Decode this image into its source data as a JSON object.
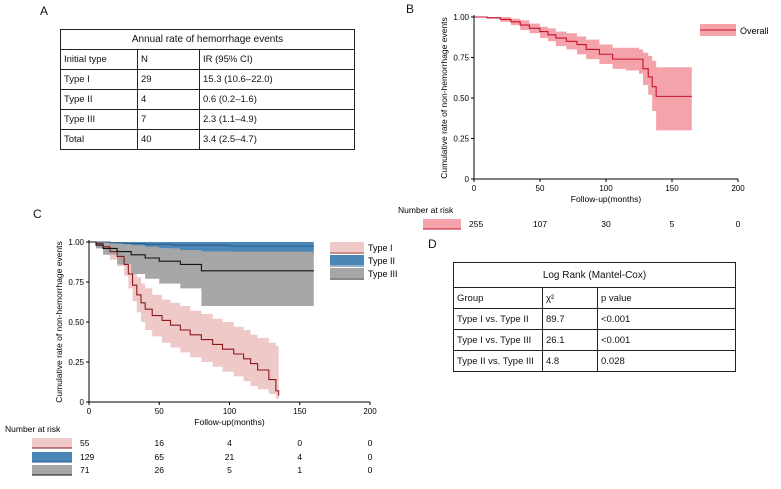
{
  "panels": {
    "a": "A",
    "b": "B",
    "c": "C",
    "d": "D"
  },
  "table_a": {
    "caption": "Annual  rate of hemorrhage events",
    "header": [
      "Initial type",
      "N",
      "IR (95% CI)"
    ],
    "rows": [
      [
        "Type I",
        "29",
        "15.3 (10.6–22.0)"
      ],
      [
        "Type II",
        "4",
        "0.6 (0.2–1.6)"
      ],
      [
        "Type III",
        "7",
        "2.3 (1.1–4.9)"
      ],
      [
        "Total",
        "40",
        "3.4 (2.5–4.7)"
      ]
    ]
  },
  "table_d": {
    "caption": "Log Rank (Mantel-Cox)",
    "header": [
      "Group",
      "χ²",
      "p value"
    ],
    "rows": [
      [
        "Type I vs. Type II",
        "89.7",
        "<0.001"
      ],
      [
        "Type I vs. Type III",
        "26.1",
        "<0.001"
      ],
      [
        "Type II vs. Type III",
        "4.8",
        "0.028"
      ]
    ]
  },
  "chart_data": [
    {
      "panel": "B",
      "type": "line",
      "xlabel": "Follow-up(months)",
      "ylabel": "Cumulative rate of non-hemorrhage events",
      "xlim": [
        0,
        200
      ],
      "ylim": [
        0,
        1
      ],
      "xticks": [
        "0",
        "50",
        "100",
        "150",
        "200"
      ],
      "yticks": [
        "0",
        "0.25",
        "0.50",
        "0.75",
        "1.00"
      ],
      "legend_position": "top-right",
      "colors": {
        "Overall": "#c8102e",
        "Overall_band": "#f4a3ab"
      },
      "series": [
        {
          "name": "Overall",
          "x": [
            0,
            10,
            20,
            28,
            35,
            42,
            50,
            56,
            62,
            70,
            78,
            85,
            95,
            105,
            115,
            125,
            128,
            132,
            135,
            138,
            165
          ],
          "y": [
            1.0,
            0.995,
            0.985,
            0.97,
            0.95,
            0.93,
            0.91,
            0.89,
            0.87,
            0.85,
            0.83,
            0.8,
            0.77,
            0.74,
            0.74,
            0.74,
            0.68,
            0.63,
            0.57,
            0.51,
            0.51
          ],
          "lower": [
            1.0,
            0.99,
            0.97,
            0.95,
            0.92,
            0.9,
            0.87,
            0.85,
            0.82,
            0.8,
            0.77,
            0.74,
            0.71,
            0.68,
            0.67,
            0.65,
            0.58,
            0.52,
            0.42,
            0.3,
            0.3
          ],
          "upper": [
            1.0,
            1.0,
            1.0,
            0.99,
            0.98,
            0.96,
            0.94,
            0.93,
            0.91,
            0.9,
            0.88,
            0.86,
            0.83,
            0.81,
            0.81,
            0.8,
            0.78,
            0.76,
            0.73,
            0.69,
            0.69
          ]
        }
      ],
      "risk_table": {
        "title": "Number at risk",
        "x": [
          0,
          50,
          100,
          150,
          200
        ],
        "rows": [
          {
            "name": "Overall",
            "values": [
              "255",
              "107",
              "30",
              "5",
              "0"
            ]
          }
        ]
      }
    },
    {
      "panel": "C",
      "type": "line",
      "xlabel": "Follow-up(months)",
      "ylabel": "Cumulative rate of non-hemorrhage events",
      "xlim": [
        0,
        200
      ],
      "ylim": [
        0,
        1
      ],
      "xticks": [
        "0",
        "50",
        "100",
        "150",
        "200"
      ],
      "yticks": [
        "0",
        "0.25",
        "0.50",
        "0.75",
        "1.00"
      ],
      "legend_position": "top-right",
      "colors": {
        "Type I": "#8b1a1a",
        "Type I_band": "#efc8c8",
        "Type II": "#2a5f8f",
        "Type II_band": "#4a86b6",
        "Type III": "#111111",
        "Type III_band": "#a6a6a6"
      },
      "series": [
        {
          "name": "Type I",
          "x": [
            0,
            5,
            10,
            15,
            20,
            25,
            28,
            31,
            34,
            37,
            40,
            45,
            52,
            58,
            65,
            72,
            80,
            88,
            95,
            103,
            110,
            115,
            120,
            128,
            133,
            135
          ],
          "y": [
            1.0,
            0.99,
            0.97,
            0.94,
            0.91,
            0.86,
            0.8,
            0.73,
            0.67,
            0.62,
            0.58,
            0.54,
            0.51,
            0.48,
            0.45,
            0.42,
            0.39,
            0.36,
            0.33,
            0.3,
            0.27,
            0.24,
            0.2,
            0.14,
            0.07,
            0.04
          ],
          "lower": [
            1.0,
            0.96,
            0.93,
            0.89,
            0.85,
            0.79,
            0.71,
            0.63,
            0.56,
            0.5,
            0.45,
            0.41,
            0.37,
            0.34,
            0.31,
            0.28,
            0.25,
            0.22,
            0.19,
            0.16,
            0.13,
            0.1,
            0.08,
            0.05,
            0.02,
            0.01
          ],
          "upper": [
            1.0,
            1.0,
            1.0,
            0.99,
            0.97,
            0.93,
            0.88,
            0.83,
            0.78,
            0.74,
            0.71,
            0.67,
            0.64,
            0.62,
            0.6,
            0.57,
            0.55,
            0.52,
            0.5,
            0.47,
            0.45,
            0.42,
            0.4,
            0.37,
            0.35,
            0.35
          ]
        },
        {
          "name": "Type II",
          "x": [
            0,
            15,
            25,
            40,
            60,
            100,
            160
          ],
          "y": [
            1.0,
            0.995,
            0.99,
            0.985,
            0.98,
            0.975,
            0.975
          ],
          "lower": [
            1.0,
            0.98,
            0.97,
            0.96,
            0.94,
            0.92,
            0.88
          ],
          "upper": [
            1.0,
            1.0,
            1.0,
            1.0,
            1.0,
            1.0,
            1.0
          ]
        },
        {
          "name": "Type III",
          "x": [
            0,
            5,
            10,
            20,
            30,
            40,
            50,
            65,
            80,
            160
          ],
          "y": [
            1.0,
            0.98,
            0.96,
            0.94,
            0.92,
            0.9,
            0.88,
            0.86,
            0.82,
            0.82
          ],
          "lower": [
            1.0,
            0.96,
            0.92,
            0.86,
            0.8,
            0.77,
            0.74,
            0.71,
            0.6,
            0.6
          ],
          "upper": [
            1.0,
            1.0,
            1.0,
            0.99,
            0.98,
            0.97,
            0.96,
            0.95,
            0.94,
            0.94
          ]
        }
      ],
      "risk_table": {
        "title": "Number at risk",
        "x": [
          0,
          50,
          100,
          150,
          200
        ],
        "rows": [
          {
            "name": "Type I",
            "values": [
              "55",
              "16",
              "4",
              "0",
              "0"
            ]
          },
          {
            "name": "Type II",
            "values": [
              "129",
              "65",
              "21",
              "4",
              "0"
            ]
          },
          {
            "name": "Type III",
            "values": [
              "71",
              "26",
              "5",
              "1",
              "0"
            ]
          }
        ]
      }
    }
  ]
}
